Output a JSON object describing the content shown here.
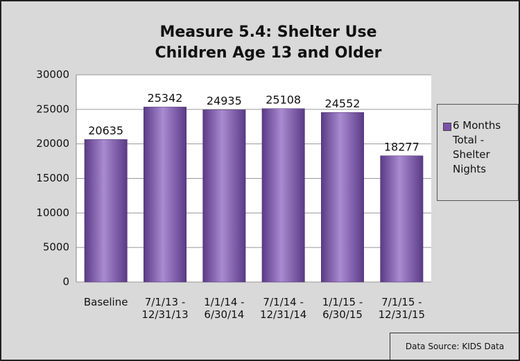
{
  "chart_data": {
    "type": "bar",
    "title": "Measure 5.4: Shelter Use Children Age 13 and Older",
    "categories": [
      "Baseline",
      "7/1/13 - 12/31/13",
      "1/1/14 - 6/30/14",
      "7/1/14 - 12/31/14",
      "1/1/15 - 6/30/15",
      "7/1/15 - 12/31/15"
    ],
    "series": [
      {
        "name": "6 Months Total - Shelter Nights",
        "color": "#7b52ab",
        "values": [
          20635,
          25342,
          24935,
          25108,
          24552,
          18277
        ]
      }
    ],
    "ylim": [
      0,
      30000
    ],
    "yticks": [
      0,
      5000,
      10000,
      15000,
      20000,
      25000,
      30000
    ],
    "grid": true,
    "legend": "right",
    "annotations": [
      "Data Source: KIDS Data"
    ]
  }
}
